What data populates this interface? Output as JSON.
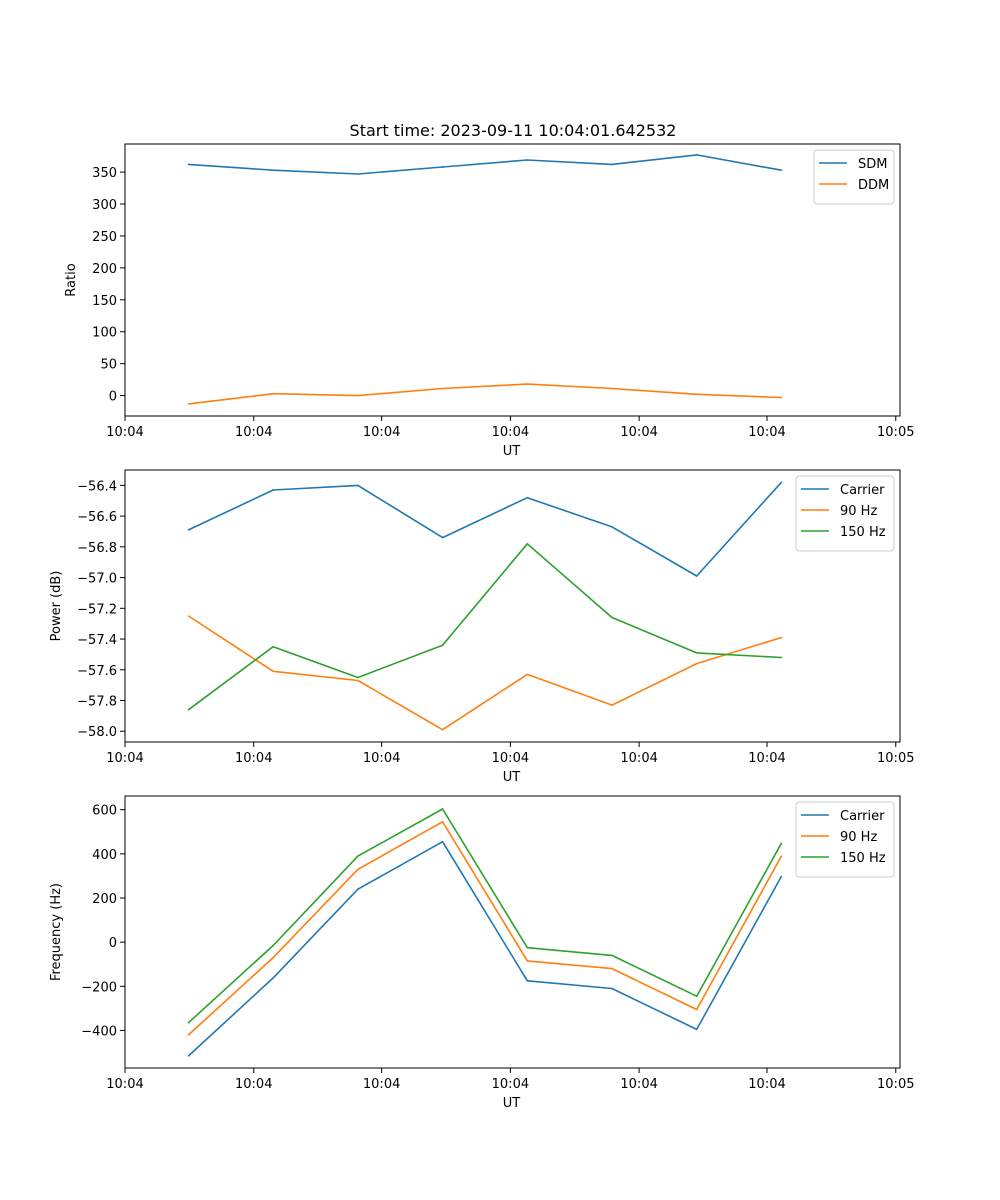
{
  "figure": {
    "title": "Start time: 2023-09-11 10:04:01.642532"
  },
  "chart_data": [
    {
      "type": "line",
      "xlabel": "UT",
      "ylabel": "Ratio",
      "x": [
        1,
        2,
        3,
        4,
        5,
        6,
        7,
        8
      ],
      "xlim": [
        0.25,
        9.4
      ],
      "x_ticks": [
        0.25,
        1.77,
        3.28,
        4.8,
        6.32,
        7.83,
        9.35
      ],
      "x_tick_labels": [
        "10:04",
        "10:04",
        "10:04",
        "10:04",
        "10:04",
        "10:04",
        "10:05"
      ],
      "ylim": [
        -32,
        394
      ],
      "y_ticks": [
        0,
        50,
        100,
        150,
        200,
        250,
        300,
        350
      ],
      "y_tick_labels": [
        "0",
        "50",
        "100",
        "150",
        "200",
        "250",
        "300",
        "350"
      ],
      "legend_position": "top-right",
      "series": [
        {
          "name": "SDM",
          "color": "#1f77b4",
          "values": [
            362,
            353,
            347,
            358,
            369,
            362,
            377,
            353
          ]
        },
        {
          "name": "DDM",
          "color": "#ff7f0e",
          "values": [
            -13,
            3,
            0,
            11,
            18,
            11,
            2,
            -3
          ]
        }
      ]
    },
    {
      "type": "line",
      "xlabel": "UT",
      "ylabel": "Power (dB)",
      "x": [
        1,
        2,
        3,
        4,
        5,
        6,
        7,
        8
      ],
      "xlim": [
        0.25,
        9.4
      ],
      "x_ticks": [
        0.25,
        1.77,
        3.28,
        4.8,
        6.32,
        7.83,
        9.35
      ],
      "x_tick_labels": [
        "10:04",
        "10:04",
        "10:04",
        "10:04",
        "10:04",
        "10:04",
        "10:05"
      ],
      "ylim": [
        -58.07,
        -56.3
      ],
      "y_ticks": [
        -58.0,
        -57.8,
        -57.6,
        -57.4,
        -57.2,
        -57.0,
        -56.8,
        -56.6,
        -56.4
      ],
      "y_tick_labels": [
        "−58.0",
        "−57.8",
        "−57.6",
        "−57.4",
        "−57.2",
        "−57.0",
        "−56.8",
        "−56.6",
        "−56.4"
      ],
      "legend_position": "top-right",
      "series": [
        {
          "name": "Carrier",
          "color": "#1f77b4",
          "values": [
            -56.69,
            -56.43,
            -56.4,
            -56.74,
            -56.48,
            -56.67,
            -56.99,
            -56.38
          ]
        },
        {
          "name": "90 Hz",
          "color": "#ff7f0e",
          "values": [
            -57.25,
            -57.61,
            -57.67,
            -57.99,
            -57.63,
            -57.83,
            -57.56,
            -57.39
          ]
        },
        {
          "name": "150 Hz",
          "color": "#2ca02c",
          "values": [
            -57.86,
            -57.45,
            -57.65,
            -57.44,
            -56.78,
            -57.26,
            -57.49,
            -57.52
          ]
        }
      ]
    },
    {
      "type": "line",
      "xlabel": "UT",
      "ylabel": "Frequency (Hz)",
      "x": [
        1,
        2,
        3,
        4,
        5,
        6,
        7,
        8
      ],
      "xlim": [
        0.25,
        9.4
      ],
      "x_ticks": [
        0.25,
        1.77,
        3.28,
        4.8,
        6.32,
        7.83,
        9.35
      ],
      "x_tick_labels": [
        "10:04",
        "10:04",
        "10:04",
        "10:04",
        "10:04",
        "10:04",
        "10:05"
      ],
      "ylim": [
        -570,
        662
      ],
      "y_ticks": [
        -400,
        -200,
        0,
        200,
        400,
        600
      ],
      "y_tick_labels": [
        "−400",
        "−200",
        "0",
        "200",
        "400",
        "600"
      ],
      "legend_position": "top-right",
      "series": [
        {
          "name": "Carrier",
          "color": "#1f77b4",
          "values": [
            -515,
            -162,
            240,
            455,
            -175,
            -210,
            -395,
            298
          ]
        },
        {
          "name": "90 Hz",
          "color": "#ff7f0e",
          "values": [
            -420,
            -70,
            330,
            545,
            -85,
            -120,
            -305,
            390
          ]
        },
        {
          "name": "150 Hz",
          "color": "#2ca02c",
          "values": [
            -365,
            -15,
            390,
            603,
            -25,
            -60,
            -245,
            448
          ]
        }
      ]
    }
  ]
}
